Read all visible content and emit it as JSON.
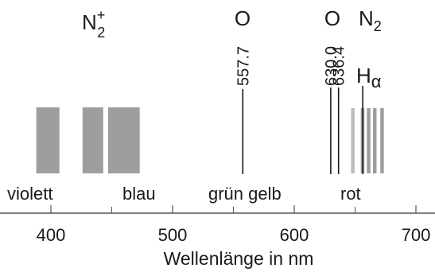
{
  "axis": {
    "title": "Wellenlänge in nm",
    "range": [
      380,
      720
    ],
    "major_ticks": [
      400,
      500,
      600,
      700
    ],
    "minor_ticks": [
      450,
      550,
      650
    ]
  },
  "color_regions": [
    {
      "label": "violett",
      "nm": 400
    },
    {
      "label": "blau",
      "nm": 474
    },
    {
      "label": "grün gelb",
      "nm": 551
    },
    {
      "label": "rot",
      "nm": 645
    }
  ],
  "species": {
    "n2_plus": {
      "base": "N",
      "sub": "2",
      "sup": "+"
    },
    "o_green": "O",
    "o_red": "O",
    "n2": {
      "base": "N",
      "sub": "2"
    },
    "h_alpha": {
      "base": "H",
      "sub": "α"
    }
  },
  "lines": [
    {
      "nm": 557.7,
      "label": "557.7"
    },
    {
      "nm": 636.4,
      "label": "636.4"
    },
    {
      "nm": 630.0,
      "label": "630.0"
    },
    {
      "nm": 656.3
    }
  ],
  "n2_plus_bands": [
    {
      "from": 388,
      "to": 407
    },
    {
      "from": 426,
      "to": 443
    },
    {
      "from": 447,
      "to": 473
    }
  ],
  "n2_bands": [
    648,
    656,
    661,
    666,
    672
  ],
  "colors": {
    "band": "#9e9e9e",
    "band_light": "#bdbdbd",
    "line": "#1a1a1a",
    "axis": "#555555"
  }
}
